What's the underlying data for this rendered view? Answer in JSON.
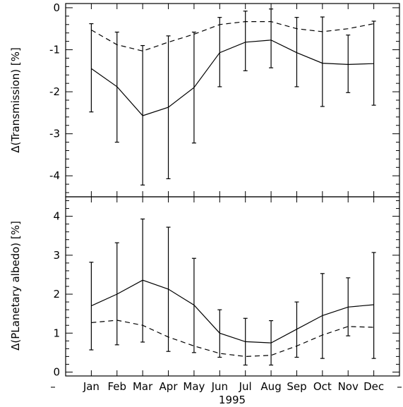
{
  "chart_data": [
    {
      "type": "line",
      "ylabel": "Δ(Transmission) [%]",
      "ylim": [
        -4.5,
        0.1
      ],
      "yticks": [
        0,
        -1,
        -2,
        -3,
        -4
      ],
      "categories": [
        "Jan",
        "Feb",
        "Mar",
        "Apr",
        "May",
        "Jun",
        "Jul",
        "Aug",
        "Sep",
        "Oct",
        "Nov",
        "Dec"
      ],
      "series": [
        {
          "style": "solid",
          "values": [
            -1.45,
            -1.88,
            -2.57,
            -2.37,
            -1.9,
            -1.07,
            -0.82,
            -0.77,
            -1.07,
            -1.32,
            -1.35,
            -1.33
          ],
          "error_low": [
            -2.48,
            -3.2,
            -4.22,
            -4.07,
            -3.22,
            -1.88,
            -1.5,
            -1.43,
            -1.88,
            -2.35,
            -2.02,
            -2.32
          ],
          "error_high": [
            -0.38,
            -0.58,
            -0.9,
            -0.67,
            -0.58,
            -0.23,
            -0.08,
            -0.03,
            -0.23,
            -0.22,
            -0.65,
            -0.32
          ]
        },
        {
          "style": "dashed",
          "values": [
            -0.53,
            -0.88,
            -1.03,
            -0.82,
            -0.63,
            -0.4,
            -0.33,
            -0.33,
            -0.5,
            -0.57,
            -0.5,
            -0.38
          ]
        }
      ]
    },
    {
      "type": "line",
      "ylabel": "Δ(PLanetary albedo) [%]",
      "xlabel": "1995",
      "ylim": [
        -0.1,
        4.5
      ],
      "yticks": [
        0,
        1,
        2,
        3,
        4
      ],
      "categories": [
        "Jan",
        "Feb",
        "Mar",
        "Apr",
        "May",
        "Jun",
        "Jul",
        "Aug",
        "Sep",
        "Oct",
        "Nov",
        "Dec"
      ],
      "series": [
        {
          "style": "solid",
          "values": [
            1.7,
            2.0,
            2.36,
            2.13,
            1.72,
            1.0,
            0.78,
            0.75,
            1.1,
            1.45,
            1.67,
            1.73
          ],
          "error_low": [
            0.57,
            0.7,
            0.77,
            0.53,
            0.5,
            0.38,
            0.18,
            0.18,
            0.38,
            0.35,
            0.93,
            0.35
          ],
          "error_high": [
            2.82,
            3.32,
            3.93,
            3.72,
            2.92,
            1.6,
            1.38,
            1.32,
            1.8,
            2.53,
            2.42,
            3.07
          ]
        },
        {
          "style": "dashed",
          "values": [
            1.27,
            1.33,
            1.2,
            0.9,
            0.67,
            0.48,
            0.4,
            0.43,
            0.67,
            0.95,
            1.17,
            1.15
          ]
        }
      ]
    }
  ],
  "x_axis": {
    "dash_left": "–",
    "dash_right": "–"
  }
}
